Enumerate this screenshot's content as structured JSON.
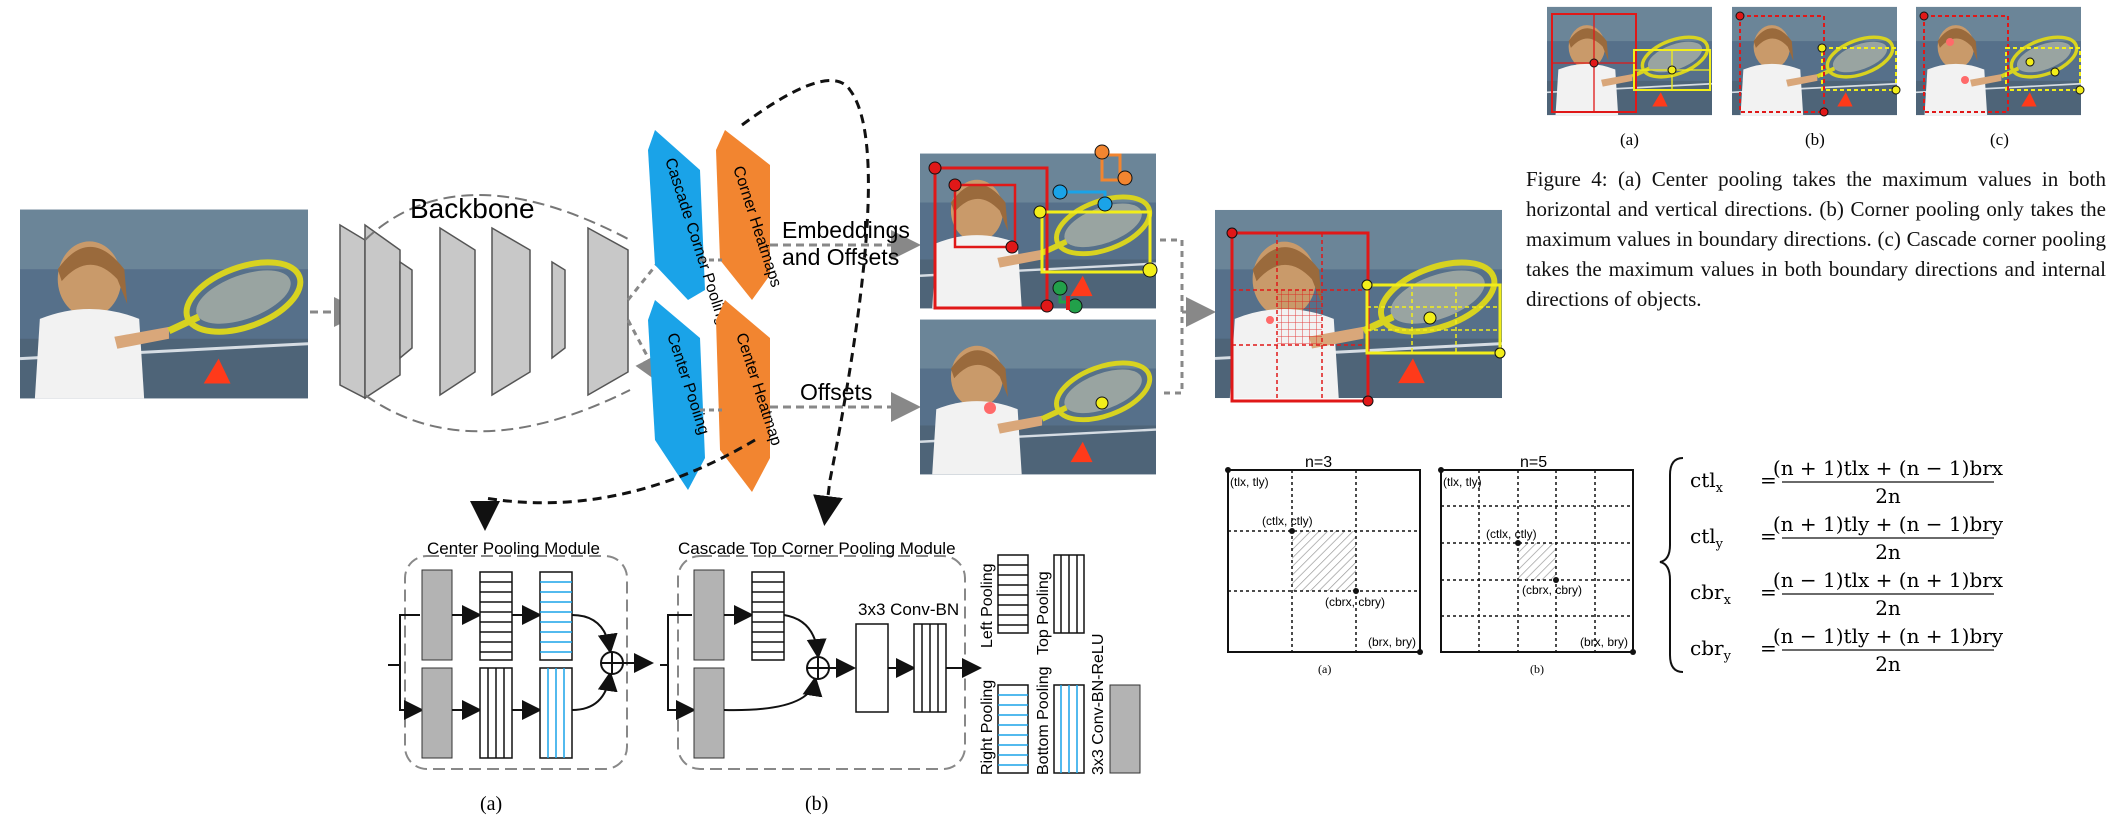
{
  "left_figure": {
    "backbone_label": "Backbone",
    "cascade_corner_pooling": "Cascade Corner Pooling",
    "corner_heatmaps": "Corner Heatmaps",
    "center_pooling": "Center Pooling",
    "center_heatmap": "Center Heatmap",
    "embeddings_line1": "Embeddings",
    "embeddings_line2": "and Offsets",
    "offsets": "Offsets",
    "center_module_title": "Center Pooling Module",
    "cascade_module_title": "Cascade Top Corner Pooling Module",
    "conv_bn": "3x3 Conv-BN",
    "left_pooling": "Left Pooling",
    "top_pooling": "Top Pooling",
    "right_pooling": "Right Pooling",
    "bottom_pooling": "Bottom Pooling",
    "conv_bn_relu": "3x3 Conv-BN-ReLU",
    "sub_a": "(a)",
    "sub_b": "(b)"
  },
  "figure4": {
    "sub_a": "(a)",
    "sub_b": "(b)",
    "sub_c": "(c)",
    "caption": "Figure 4: (a) Center pooling takes the maximum values in both horizontal and vertical directions. (b) Corner pooling only takes the maximum values in boundary directions. (c) Cascade corner pooling takes the maximum values in both boundary directions and internal directions of objects."
  },
  "grids": {
    "left_title": "n=3",
    "right_title": "n=5",
    "tl": "(tlx, tly)",
    "br": "(brx, bry)",
    "ctl": "(ctlx, ctly)",
    "cbr": "(cbrx, cbry)",
    "sub_a": "(a)",
    "sub_b": "(b)"
  },
  "equations": [
    {
      "lhs": "ctl",
      "sub": "x",
      "num": "(n + 1)tlx + (n − 1)brx",
      "den": "2n"
    },
    {
      "lhs": "ctl",
      "sub": "y",
      "num": "(n + 1)tly + (n − 1)bry",
      "den": "2n"
    },
    {
      "lhs": "cbr",
      "sub": "x",
      "num": "(n − 1)tlx + (n + 1)brx",
      "den": "2n"
    },
    {
      "lhs": "cbr",
      "sub": "y",
      "num": "(n − 1)tly + (n + 1)bry",
      "den": "2n"
    }
  ],
  "colors": {
    "blue": "#1aa3e8",
    "orange": "#f28530",
    "red": "#e01818",
    "yellow": "#f2ee1a",
    "gray": "#bdbdbd",
    "photo_bg": "#56708a"
  }
}
